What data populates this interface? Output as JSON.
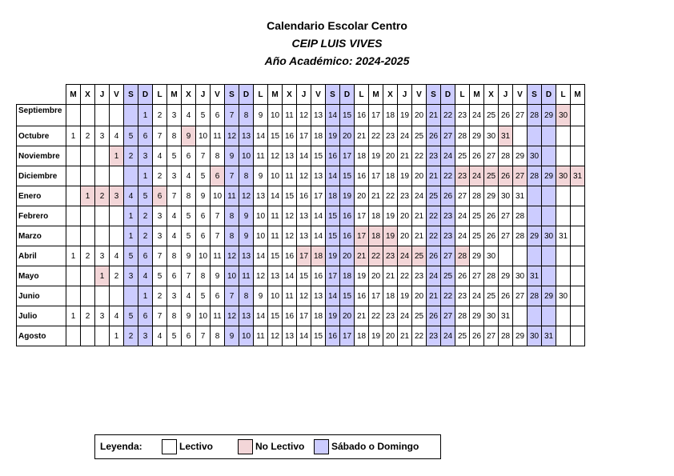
{
  "header": {
    "title": "Calendario Escolar Centro",
    "school": "CEIP LUIS VIVES",
    "year": "Año Académico: 2024-2025"
  },
  "weekday_headers": [
    "M",
    "X",
    "J",
    "V",
    "S",
    "D",
    "L",
    "M",
    "X",
    "J",
    "V",
    "S",
    "D",
    "L",
    "M",
    "X",
    "J",
    "V",
    "S",
    "D",
    "L",
    "M",
    "X",
    "J",
    "V",
    "S",
    "D",
    "L",
    "M",
    "X",
    "J",
    "V",
    "S",
    "D",
    "L",
    "M"
  ],
  "weekend_columns": [
    4,
    5,
    11,
    12,
    18,
    19,
    25,
    26,
    32,
    33
  ],
  "months": [
    {
      "name": "Septiembre",
      "start_col": 5,
      "days": 30,
      "no_lectivo": [
        30
      ]
    },
    {
      "name": "Octubre",
      "start_col": 0,
      "days": 31,
      "no_lectivo": [
        9,
        31
      ]
    },
    {
      "name": "Noviembre",
      "start_col": 3,
      "days": 30,
      "no_lectivo": [
        1
      ]
    },
    {
      "name": "Diciembre",
      "start_col": 5,
      "days": 31,
      "no_lectivo": [
        6,
        23,
        24,
        25,
        26,
        27,
        30,
        31
      ]
    },
    {
      "name": "Enero",
      "start_col": 1,
      "days": 31,
      "no_lectivo": [
        1,
        2,
        3,
        6
      ]
    },
    {
      "name": "Febrero",
      "start_col": 4,
      "days": 28,
      "no_lectivo": []
    },
    {
      "name": "Marzo",
      "start_col": 4,
      "days": 31,
      "no_lectivo": [
        17,
        18,
        19
      ]
    },
    {
      "name": "Abril",
      "start_col": 0,
      "days": 30,
      "no_lectivo": [
        17,
        18,
        21,
        22,
        23,
        24,
        25,
        28
      ]
    },
    {
      "name": "Mayo",
      "start_col": 2,
      "days": 31,
      "no_lectivo": [
        1
      ]
    },
    {
      "name": "Junio",
      "start_col": 5,
      "days": 30,
      "no_lectivo": []
    },
    {
      "name": "Julio",
      "start_col": 0,
      "days": 31,
      "no_lectivo": []
    },
    {
      "name": "Agosto",
      "start_col": 3,
      "days": 31,
      "no_lectivo": []
    }
  ],
  "legend": {
    "label": "Leyenda:",
    "items": [
      {
        "label": "Lectivo",
        "color": "#ffffff"
      },
      {
        "label": "No Lectivo",
        "color": "#f3d6d8"
      },
      {
        "label": "Sábado o Domingo",
        "color": "#ccccff"
      }
    ]
  }
}
